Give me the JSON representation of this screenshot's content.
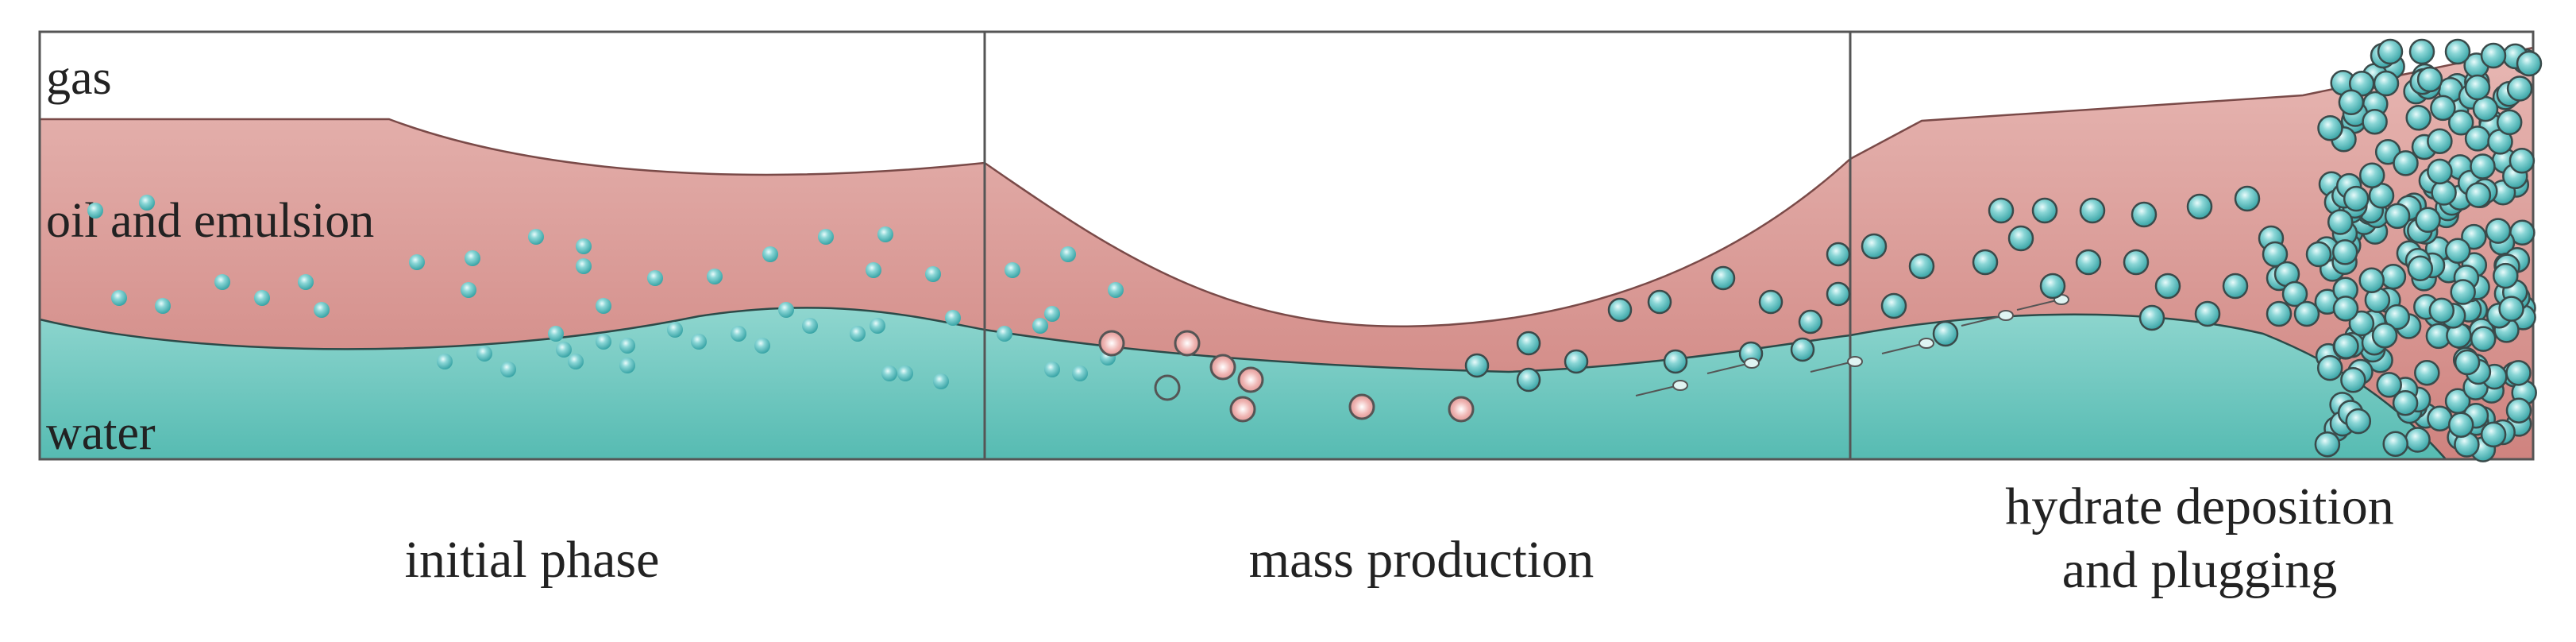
{
  "layers": {
    "gas_label": "gas",
    "oil_label": "oil and emulsion",
    "water_label": "water"
  },
  "stages": [
    {
      "caption_lines": [
        "initial phase"
      ]
    },
    {
      "caption_lines": [
        "mass production"
      ]
    },
    {
      "caption_lines": [
        "hydrate deposition",
        "and plugging"
      ]
    }
  ],
  "colors": {
    "gas": "#ffffff",
    "oil": "#d9938f",
    "water": "#6cc7bf",
    "hydrate_particle": "#54b8b8",
    "water_droplet": "#e8a8a6",
    "outline": "#4a4a4a"
  }
}
